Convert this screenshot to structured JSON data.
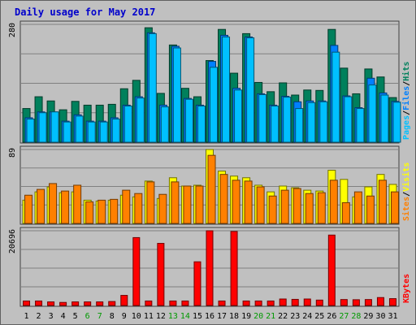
{
  "chart_data": {
    "type": "bar",
    "title": "Daily usage for May 2017",
    "categories": [
      "1",
      "2",
      "3",
      "4",
      "5",
      "6",
      "7",
      "8",
      "9",
      "10",
      "11",
      "12",
      "13",
      "14",
      "15",
      "16",
      "17",
      "18",
      "19",
      "20",
      "21",
      "22",
      "23",
      "24",
      "25",
      "26",
      "27",
      "28",
      "29",
      "30",
      "31"
    ],
    "weekend_days": [
      "6",
      "7",
      "13",
      "14",
      "20",
      "21",
      "27",
      "28"
    ],
    "colors": {
      "title": "#0000cc",
      "frame": "#c0c0c0",
      "plot_bg": "#c0c0c0",
      "grid": "#808080",
      "weekday_label": "#000000",
      "weekend_label": "#009900",
      "hits": "#00805c",
      "files": "#0080ff",
      "pages": "#00c0ff",
      "visits": "#ffff00",
      "sites": "#ff8000",
      "kbytes": "#ff0000"
    },
    "panels": [
      {
        "id": "hits-files-pages",
        "y_max": 280,
        "y_max_label": "280",
        "legend": [
          "Pages",
          "Files",
          "Hits"
        ],
        "legend_colors": [
          "#00c0ff",
          "#0080ff",
          "#00805c"
        ],
        "series": [
          {
            "name": "Hits",
            "color": "#00805c",
            "values": [
              80,
              108,
              98,
              77,
              97,
              88,
              88,
              90,
              127,
              147,
              272,
              116,
              231,
              128,
              108,
              194,
              268,
              164,
              258,
              142,
              120,
              141,
              112,
              124,
              123,
              268,
              176,
              115,
              174,
              155,
              106
            ]
          },
          {
            "name": "Files",
            "color": "#0080ff",
            "values": [
              58,
              72,
              72,
              50,
              65,
              50,
              50,
              58,
              88,
              108,
              260,
              88,
              228,
              104,
              88,
              192,
              254,
              128,
              250,
              115,
              88,
              109,
              96,
              98,
              98,
              230,
              110,
              82,
              152,
              117,
              97
            ]
          },
          {
            "name": "Pages",
            "color": "#00c0ff",
            "values": [
              55,
              70,
              72,
              48,
              62,
              48,
              48,
              55,
              86,
              105,
              258,
              84,
              224,
              102,
              86,
              178,
              250,
              124,
              248,
              113,
              86,
              107,
              80,
              94,
              96,
              214,
              108,
              80,
              136,
              112,
              95
            ]
          }
        ]
      },
      {
        "id": "visits-sites",
        "y_max": 89,
        "y_max_label": "89",
        "legend": [
          "Sites",
          "Visits"
        ],
        "legend_colors": [
          "#ff8000",
          "#ffff00"
        ],
        "series": [
          {
            "name": "Visits",
            "color": "#ffff00",
            "values": [
              28,
              38,
              44,
              37,
              38,
              28,
              27,
              28,
              34,
              32,
              51,
              30,
              55,
              45,
              46,
              89,
              63,
              57,
              55,
              46,
              38,
              45,
              43,
              40,
              39,
              64,
              53,
              32,
              44,
              59,
              47
            ]
          },
          {
            "name": "Sites",
            "color": "#ff8000",
            "values": [
              34,
              41,
              48,
              39,
              46,
              26,
              28,
              29,
              40,
              36,
              50,
              35,
              50,
              45,
              45,
              82,
              59,
              52,
              51,
              44,
              33,
              40,
              42,
              36,
              37,
              52,
              25,
              38,
              33,
              52,
              38
            ]
          }
        ]
      },
      {
        "id": "kbytes",
        "y_max": 20696,
        "y_max_label": "20696",
        "legend": [
          "KBytes"
        ],
        "legend_colors": [
          "#ff0000"
        ],
        "series": [
          {
            "name": "KBytes",
            "color": "#ff0000",
            "values": [
              1250,
              1250,
              1000,
              850,
              1000,
              1000,
              1000,
              1100,
              2800,
              18800,
              1250,
              17200,
              1250,
              1250,
              12100,
              20696,
              1250,
              20500,
              1250,
              1250,
              1250,
              1800,
              1700,
              1800,
              1500,
              19500,
              1650,
              1600,
              1650,
              2200,
              1900
            ]
          }
        ]
      }
    ]
  }
}
